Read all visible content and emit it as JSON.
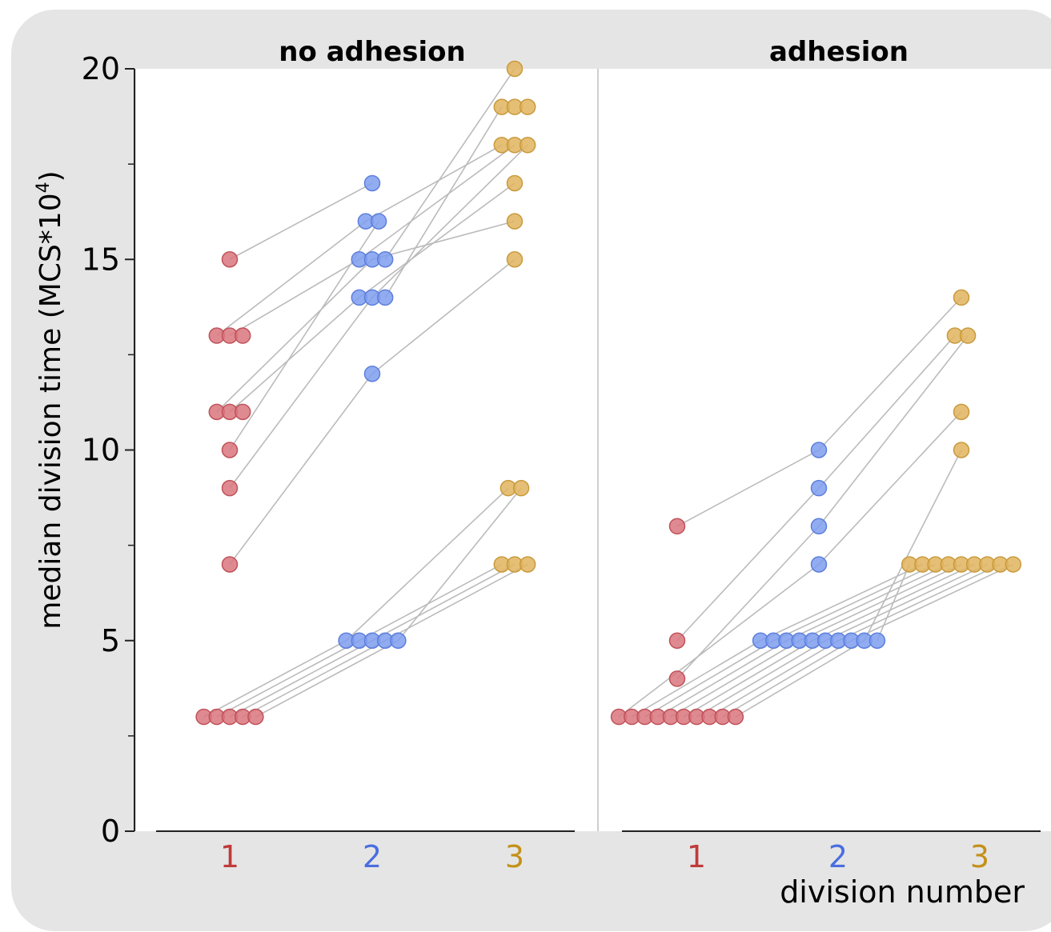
{
  "chart_data": {
    "type": "scatter",
    "ylabel_main": "median division time (MCS*10",
    "ylabel_sup": "4",
    "ylabel_close": ")",
    "xlabel": "division number",
    "ylim": [
      0,
      20
    ],
    "yticks": [
      "0",
      "5",
      "10",
      "15",
      "20"
    ],
    "xticks": [
      "1",
      "2",
      "3"
    ],
    "colors": {
      "d1": "#d9757c",
      "d2": "#7f9df0",
      "d3": "#e0b45e",
      "tick1": "#c03a3a",
      "tick2": "#4a6ee0",
      "tick3": "#c49018"
    },
    "panels": [
      {
        "title": "no adhesion",
        "series": [
          {
            "division": 1,
            "values": [
              15,
              13,
              13,
              13,
              11,
              11,
              11,
              10,
              9,
              7,
              3,
              3,
              3,
              3,
              3
            ]
          },
          {
            "division": 2,
            "values": [
              17,
              16,
              16,
              15,
              15,
              15,
              14,
              14,
              14,
              12,
              5,
              5,
              5,
              5,
              5
            ]
          },
          {
            "division": 3,
            "values": [
              20,
              19,
              19,
              19,
              18,
              18,
              18,
              17,
              16,
              15,
              9,
              9,
              7,
              7,
              7
            ]
          }
        ],
        "lineages": [
          [
            15,
            17
          ],
          [
            13,
            16
          ],
          [
            13,
            15
          ],
          [
            11,
            15
          ],
          [
            11,
            14
          ],
          [
            10,
            16
          ],
          [
            9,
            14
          ],
          [
            7,
            12
          ],
          [
            3,
            5
          ],
          [
            3,
            5
          ],
          [
            3,
            5
          ],
          [
            3,
            5
          ],
          [
            3,
            5
          ],
          [
            17,
            19
          ],
          [
            16,
            19
          ],
          [
            16,
            18
          ],
          [
            15,
            20
          ],
          [
            15,
            18
          ],
          [
            15,
            16
          ],
          [
            14,
            19
          ],
          [
            14,
            17
          ],
          [
            14,
            18
          ],
          [
            12,
            15
          ],
          [
            5,
            9
          ],
          [
            5,
            7
          ],
          [
            5,
            7
          ],
          [
            5,
            7
          ],
          [
            5,
            9
          ]
        ]
      },
      {
        "title": "adhesion",
        "series": [
          {
            "division": 1,
            "values": [
              8,
              5,
              4,
              3,
              3,
              3,
              3,
              3,
              3,
              3,
              3,
              3,
              3
            ]
          },
          {
            "division": 2,
            "values": [
              10,
              9,
              8,
              7,
              5,
              5,
              5,
              5,
              5,
              5,
              5,
              5,
              5,
              5
            ]
          },
          {
            "division": 3,
            "values": [
              14,
              13,
              13,
              11,
              10,
              7,
              7,
              7,
              7,
              7,
              7,
              7,
              7,
              7
            ]
          }
        ],
        "lineages": [
          [
            8,
            10
          ],
          [
            5,
            9
          ],
          [
            4,
            8
          ],
          [
            3,
            7
          ],
          [
            3,
            5
          ],
          [
            3,
            5
          ],
          [
            3,
            5
          ],
          [
            3,
            5
          ],
          [
            3,
            5
          ],
          [
            3,
            5
          ],
          [
            3,
            5
          ],
          [
            3,
            5
          ],
          [
            3,
            5
          ],
          [
            3,
            5
          ],
          [
            10,
            14
          ],
          [
            9,
            13
          ],
          [
            8,
            13
          ],
          [
            7,
            11
          ],
          [
            5,
            7
          ],
          [
            5,
            7
          ],
          [
            5,
            7
          ],
          [
            5,
            7
          ],
          [
            5,
            7
          ],
          [
            5,
            7
          ],
          [
            5,
            7
          ],
          [
            5,
            7
          ],
          [
            5,
            7
          ],
          [
            5,
            10
          ]
        ]
      }
    ]
  }
}
